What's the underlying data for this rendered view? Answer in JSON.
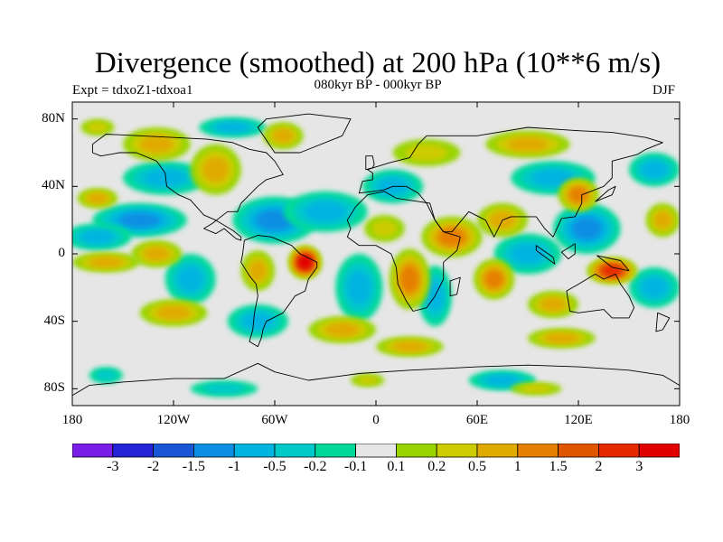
{
  "header": {
    "title": "Divergence (smoothed) at 200 hPa (10**6 m/s)",
    "experiment": "Expt = tdxoZ1-tdxoa1",
    "period": "080kyr BP - 000kyr BP",
    "season": "DJF"
  },
  "map": {
    "projection": "cylindrical-equidistant",
    "lon_range": [
      180,
      540
    ],
    "lat_range": [
      -90,
      90
    ],
    "lat_ticks": [
      {
        "value": 80,
        "label": "80N"
      },
      {
        "value": 40,
        "label": "40N"
      },
      {
        "value": 0,
        "label": "0"
      },
      {
        "value": -40,
        "label": "40S"
      },
      {
        "value": -80,
        "label": "80S"
      }
    ],
    "lon_ticks": [
      {
        "value": 180,
        "label": "180"
      },
      {
        "value": 240,
        "label": "120W"
      },
      {
        "value": 300,
        "label": "60W"
      },
      {
        "value": 360,
        "label": "0"
      },
      {
        "value": 420,
        "label": "60E"
      },
      {
        "value": 480,
        "label": "120E"
      },
      {
        "value": 540,
        "label": "180"
      }
    ],
    "background_color": "#e6e6e6",
    "coastline_color": "#000000",
    "field_features": [
      {
        "lon": 220,
        "lat": 20,
        "value": -1,
        "rx": 28,
        "ry": 10
      },
      {
        "lon": 195,
        "lat": 10,
        "value": -0.5,
        "rx": 20,
        "ry": 8
      },
      {
        "lon": 235,
        "lat": 45,
        "value": -0.5,
        "rx": 25,
        "ry": 10
      },
      {
        "lon": 275,
        "lat": 75,
        "value": -0.5,
        "rx": 20,
        "ry": 6
      },
      {
        "lon": 300,
        "lat": 20,
        "value": -1,
        "rx": 25,
        "ry": 14
      },
      {
        "lon": 330,
        "lat": 25,
        "value": -0.5,
        "rx": 25,
        "ry": 12
      },
      {
        "lon": 370,
        "lat": 40,
        "value": -0.5,
        "rx": 18,
        "ry": 10
      },
      {
        "lon": 250,
        "lat": -15,
        "value": -0.5,
        "rx": 15,
        "ry": 15
      },
      {
        "lon": 290,
        "lat": -40,
        "value": -0.5,
        "rx": 18,
        "ry": 10
      },
      {
        "lon": 350,
        "lat": -20,
        "value": -0.5,
        "rx": 14,
        "ry": 20
      },
      {
        "lon": 395,
        "lat": -25,
        "value": -0.5,
        "rx": 10,
        "ry": 18
      },
      {
        "lon": 450,
        "lat": 0,
        "value": -0.5,
        "rx": 20,
        "ry": 12
      },
      {
        "lon": 485,
        "lat": 15,
        "value": -1,
        "rx": 20,
        "ry": 15
      },
      {
        "lon": 465,
        "lat": 45,
        "value": -0.5,
        "rx": 25,
        "ry": 10
      },
      {
        "lon": 525,
        "lat": 50,
        "value": -0.5,
        "rx": 15,
        "ry": 10
      },
      {
        "lon": 525,
        "lat": -20,
        "value": -0.5,
        "rx": 15,
        "ry": 12
      },
      {
        "lon": 270,
        "lat": -80,
        "value": -0.2,
        "rx": 20,
        "ry": 5
      },
      {
        "lon": 435,
        "lat": -75,
        "value": -0.5,
        "rx": 20,
        "ry": 6
      },
      {
        "lon": 200,
        "lat": -72,
        "value": -0.2,
        "rx": 10,
        "ry": 5
      },
      {
        "lon": 230,
        "lat": 65,
        "value": 0.5,
        "rx": 20,
        "ry": 10
      },
      {
        "lon": 265,
        "lat": 50,
        "value": 0.5,
        "rx": 15,
        "ry": 15
      },
      {
        "lon": 305,
        "lat": 70,
        "value": 0.5,
        "rx": 12,
        "ry": 8
      },
      {
        "lon": 195,
        "lat": 33,
        "value": 0.5,
        "rx": 12,
        "ry": 6
      },
      {
        "lon": 200,
        "lat": -5,
        "value": 0.5,
        "rx": 20,
        "ry": 6
      },
      {
        "lon": 230,
        "lat": 0,
        "value": 0.5,
        "rx": 15,
        "ry": 8
      },
      {
        "lon": 318,
        "lat": -5,
        "value": 3,
        "rx": 10,
        "ry": 10
      },
      {
        "lon": 290,
        "lat": -10,
        "value": 0.5,
        "rx": 10,
        "ry": 12
      },
      {
        "lon": 240,
        "lat": -35,
        "value": 0.5,
        "rx": 20,
        "ry": 8
      },
      {
        "lon": 340,
        "lat": -45,
        "value": 0.5,
        "rx": 20,
        "ry": 8
      },
      {
        "lon": 380,
        "lat": -15,
        "value": 1,
        "rx": 12,
        "ry": 18
      },
      {
        "lon": 405,
        "lat": 10,
        "value": 1,
        "rx": 18,
        "ry": 12
      },
      {
        "lon": 435,
        "lat": 20,
        "value": 0.5,
        "rx": 15,
        "ry": 10
      },
      {
        "lon": 430,
        "lat": -15,
        "value": 1,
        "rx": 12,
        "ry": 12
      },
      {
        "lon": 465,
        "lat": -30,
        "value": 0.5,
        "rx": 15,
        "ry": 8
      },
      {
        "lon": 500,
        "lat": -10,
        "value": 2,
        "rx": 15,
        "ry": 8
      },
      {
        "lon": 480,
        "lat": 35,
        "value": 1,
        "rx": 12,
        "ry": 10
      },
      {
        "lon": 470,
        "lat": -50,
        "value": 0.5,
        "rx": 20,
        "ry": 6
      },
      {
        "lon": 380,
        "lat": -55,
        "value": 0.5,
        "rx": 20,
        "ry": 6
      },
      {
        "lon": 450,
        "lat": 65,
        "value": 0.5,
        "rx": 25,
        "ry": 8
      },
      {
        "lon": 390,
        "lat": 60,
        "value": 0.2,
        "rx": 20,
        "ry": 8
      },
      {
        "lon": 530,
        "lat": 20,
        "value": 0.5,
        "rx": 10,
        "ry": 10
      },
      {
        "lon": 365,
        "lat": 15,
        "value": 0.2,
        "rx": 12,
        "ry": 8
      },
      {
        "lon": 195,
        "lat": 75,
        "value": 0.2,
        "rx": 10,
        "ry": 5
      },
      {
        "lon": 355,
        "lat": -75,
        "value": 0.2,
        "rx": 10,
        "ry": 4
      },
      {
        "lon": 455,
        "lat": -80,
        "value": 0.2,
        "rx": 15,
        "ry": 4
      }
    ],
    "landmasses": [
      {
        "name": "north-america",
        "points": [
          [
            192,
            65
          ],
          [
            200,
            71
          ],
          [
            220,
            70
          ],
          [
            240,
            69
          ],
          [
            260,
            68
          ],
          [
            275,
            66
          ],
          [
            285,
            62
          ],
          [
            295,
            60
          ],
          [
            300,
            55
          ],
          [
            305,
            47
          ],
          [
            295,
            44
          ],
          [
            290,
            40
          ],
          [
            285,
            35
          ],
          [
            280,
            30
          ],
          [
            278,
            25
          ],
          [
            272,
            25
          ],
          [
            263,
            18
          ],
          [
            258,
            15
          ],
          [
            265,
            12
          ],
          [
            270,
            15
          ],
          [
            277,
            9
          ],
          [
            280,
            8
          ],
          [
            280,
            10
          ],
          [
            275,
            14
          ],
          [
            265,
            20
          ],
          [
            258,
            23
          ],
          [
            250,
            32
          ],
          [
            243,
            35
          ],
          [
            236,
            40
          ],
          [
            235,
            48
          ],
          [
            230,
            55
          ],
          [
            218,
            60
          ],
          [
            208,
            60
          ],
          [
            197,
            58
          ],
          [
            192,
            60
          ],
          [
            192,
            65
          ]
        ]
      },
      {
        "name": "greenland",
        "points": [
          [
            300,
            60
          ],
          [
            315,
            60
          ],
          [
            340,
            70
          ],
          [
            345,
            80
          ],
          [
            320,
            83
          ],
          [
            295,
            80
          ],
          [
            290,
            75
          ],
          [
            300,
            60
          ]
        ]
      },
      {
        "name": "south-america",
        "points": [
          [
            282,
            8
          ],
          [
            290,
            11
          ],
          [
            298,
            10
          ],
          [
            310,
            5
          ],
          [
            315,
            0
          ],
          [
            325,
            -5
          ],
          [
            325,
            -8
          ],
          [
            320,
            -15
          ],
          [
            318,
            -22
          ],
          [
            312,
            -25
          ],
          [
            305,
            -35
          ],
          [
            295,
            -40
          ],
          [
            293,
            -45
          ],
          [
            292,
            -50
          ],
          [
            290,
            -55
          ],
          [
            285,
            -52
          ],
          [
            287,
            -45
          ],
          [
            288,
            -35
          ],
          [
            290,
            -25
          ],
          [
            289,
            -18
          ],
          [
            285,
            -13
          ],
          [
            280,
            -5
          ],
          [
            281,
            0
          ],
          [
            282,
            8
          ]
        ]
      },
      {
        "name": "africa",
        "points": [
          [
            345,
            15
          ],
          [
            343,
            20
          ],
          [
            348,
            28
          ],
          [
            355,
            35
          ],
          [
            365,
            37
          ],
          [
            372,
            33
          ],
          [
            385,
            31
          ],
          [
            392,
            30
          ],
          [
            395,
            20
          ],
          [
            400,
            13
          ],
          [
            410,
            10
          ],
          [
            408,
            2
          ],
          [
            400,
            -5
          ],
          [
            400,
            -15
          ],
          [
            395,
            -25
          ],
          [
            390,
            -32
          ],
          [
            382,
            -34
          ],
          [
            378,
            -28
          ],
          [
            373,
            -18
          ],
          [
            372,
            -8
          ],
          [
            369,
            0
          ],
          [
            360,
            5
          ],
          [
            350,
            5
          ],
          [
            343,
            10
          ],
          [
            345,
            15
          ]
        ]
      },
      {
        "name": "eurasia",
        "points": [
          [
            350,
            36
          ],
          [
            352,
            43
          ],
          [
            358,
            44
          ],
          [
            358,
            48
          ],
          [
            355,
            50
          ],
          [
            368,
            54
          ],
          [
            380,
            57
          ],
          [
            385,
            65
          ],
          [
            390,
            70
          ],
          [
            400,
            70
          ],
          [
            420,
            70
          ],
          [
            450,
            75
          ],
          [
            480,
            73
          ],
          [
            500,
            72
          ],
          [
            520,
            69
          ],
          [
            530,
            66
          ],
          [
            520,
            62
          ],
          [
            515,
            59
          ],
          [
            500,
            55
          ],
          [
            500,
            45
          ],
          [
            495,
            40
          ],
          [
            482,
            35
          ],
          [
            482,
            30
          ],
          [
            478,
            22
          ],
          [
            470,
            21
          ],
          [
            465,
            10
          ],
          [
            460,
            15
          ],
          [
            455,
            22
          ],
          [
            440,
            22
          ],
          [
            435,
            20
          ],
          [
            430,
            10
          ],
          [
            425,
            20
          ],
          [
            415,
            25
          ],
          [
            405,
            13
          ],
          [
            400,
            13
          ],
          [
            395,
            20
          ],
          [
            390,
            30
          ],
          [
            385,
            36
          ],
          [
            378,
            40
          ],
          [
            370,
            40
          ],
          [
            365,
            38
          ],
          [
            358,
            37
          ],
          [
            350,
            36
          ]
        ]
      },
      {
        "name": "australia",
        "points": [
          [
            473,
            -22
          ],
          [
            475,
            -34
          ],
          [
            480,
            -35
          ],
          [
            495,
            -33
          ],
          [
            500,
            -38
          ],
          [
            510,
            -38
          ],
          [
            513,
            -32
          ],
          [
            510,
            -25
          ],
          [
            505,
            -18
          ],
          [
            502,
            -12
          ],
          [
            495,
            -15
          ],
          [
            490,
            -12
          ],
          [
            480,
            -18
          ],
          [
            473,
            -22
          ]
        ]
      },
      {
        "name": "antarctica",
        "points": [
          [
            180,
            -84
          ],
          [
            190,
            -78
          ],
          [
            210,
            -76
          ],
          [
            240,
            -74
          ],
          [
            270,
            -74
          ],
          [
            290,
            -65
          ],
          [
            300,
            -70
          ],
          [
            320,
            -75
          ],
          [
            350,
            -71
          ],
          [
            380,
            -69
          ],
          [
            420,
            -67
          ],
          [
            450,
            -66
          ],
          [
            480,
            -67
          ],
          [
            510,
            -69
          ],
          [
            530,
            -72
          ],
          [
            540,
            -78
          ],
          [
            540,
            -90
          ],
          [
            180,
            -90
          ],
          [
            180,
            -84
          ]
        ]
      },
      {
        "name": "uk",
        "points": [
          [
            354,
            50
          ],
          [
            358,
            51
          ],
          [
            359,
            53
          ],
          [
            358,
            58
          ],
          [
            354,
            58
          ],
          [
            354,
            50
          ]
        ]
      },
      {
        "name": "japan",
        "points": [
          [
            490,
            31
          ],
          [
            500,
            35
          ],
          [
            502,
            40
          ],
          [
            498,
            38
          ],
          [
            490,
            31
          ]
        ]
      },
      {
        "name": "madagascar",
        "points": [
          [
            404,
            -16
          ],
          [
            410,
            -14
          ],
          [
            408,
            -24
          ],
          [
            404,
            -25
          ],
          [
            404,
            -16
          ]
        ]
      },
      {
        "name": "borneo",
        "points": [
          [
            470,
            1
          ],
          [
            478,
            6
          ],
          [
            478,
            0
          ],
          [
            474,
            -3
          ],
          [
            470,
            1
          ]
        ]
      },
      {
        "name": "sumatra",
        "points": [
          [
            455,
            5
          ],
          [
            465,
            -2
          ],
          [
            466,
            -6
          ],
          [
            455,
            2
          ],
          [
            455,
            5
          ]
        ]
      },
      {
        "name": "new-guinea",
        "points": [
          [
            491,
            -1
          ],
          [
            505,
            -4
          ],
          [
            510,
            -10
          ],
          [
            500,
            -8
          ],
          [
            491,
            -1
          ]
        ]
      },
      {
        "name": "new-zealand",
        "points": [
          [
            527,
            -35
          ],
          [
            534,
            -38
          ],
          [
            530,
            -45
          ],
          [
            526,
            -46
          ],
          [
            527,
            -35
          ]
        ]
      }
    ]
  },
  "colorbar": {
    "levels": [
      "-3",
      "-2",
      "-1.5",
      "-1",
      "-0.5",
      "-0.2",
      "-0.1",
      "0.1",
      "0.2",
      "0.5",
      "1",
      "1.5",
      "2",
      "3"
    ],
    "colors": [
      "#7a1de6",
      "#2424d6",
      "#1a57d6",
      "#0d8fe3",
      "#00b4e0",
      "#00c9c9",
      "#00d99a",
      "#e6e6e6",
      "#99d400",
      "#cccc00",
      "#e0aa00",
      "#e67f00",
      "#e05500",
      "#e62a00",
      "#e00000"
    ]
  }
}
